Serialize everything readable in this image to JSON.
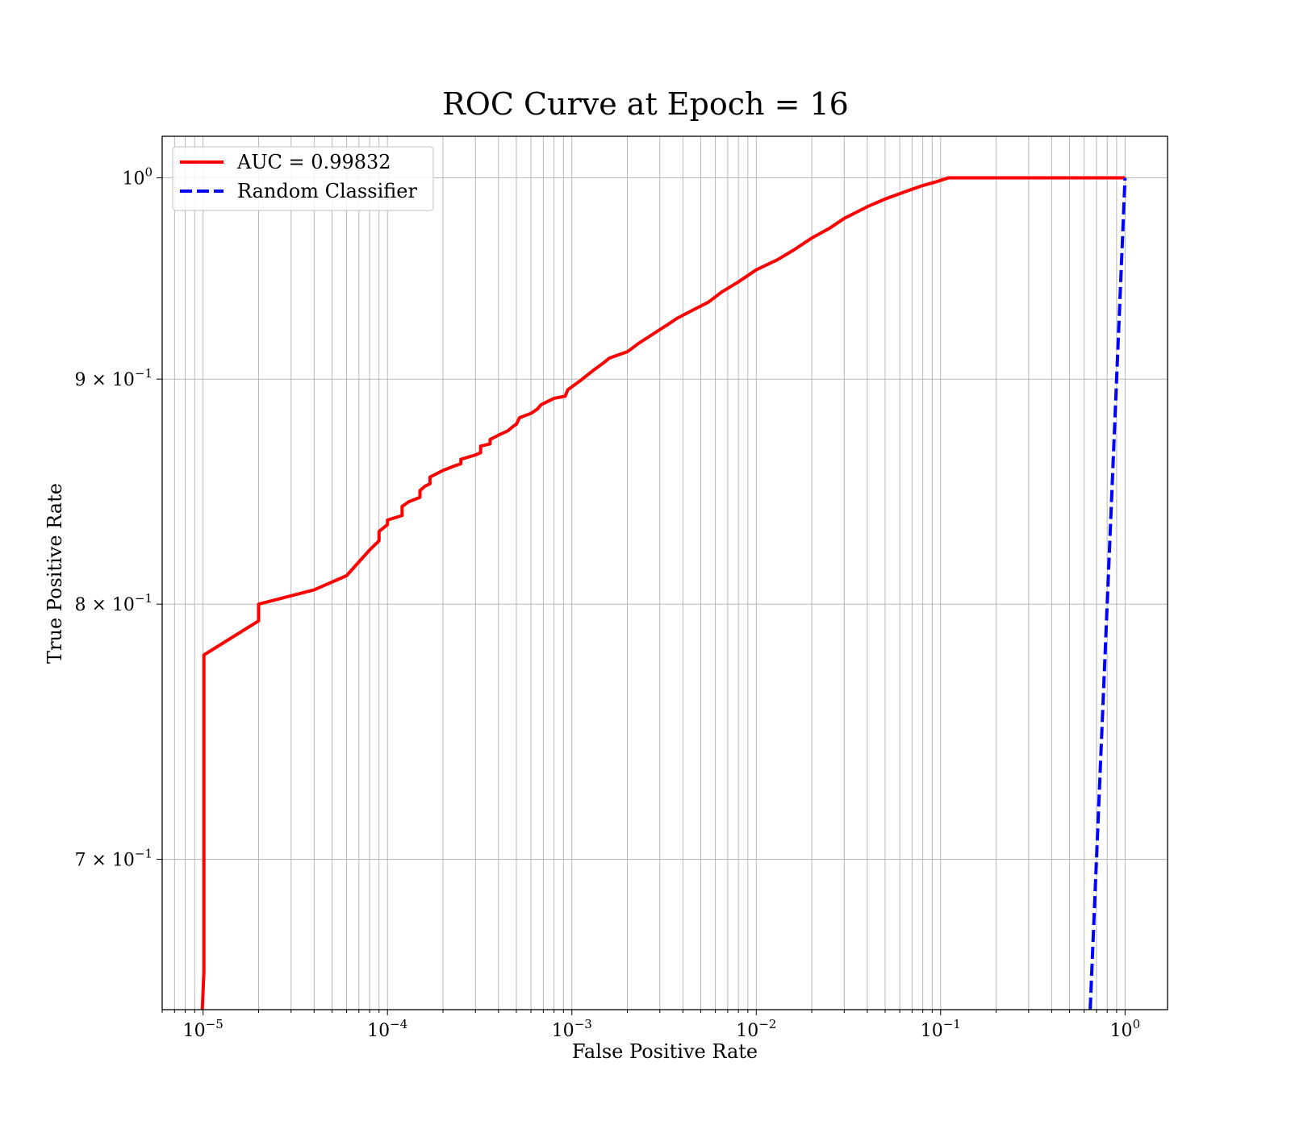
{
  "chart_data": {
    "type": "line",
    "title": "ROC Curve at Epoch = 16",
    "xlabel": "False Positive Rate",
    "ylabel": "True Positive Rate",
    "xscale": "log",
    "yscale": "log",
    "xlim": [
      6e-06,
      1.7
    ],
    "ylim": [
      0.647,
      1.022
    ],
    "grid": "both",
    "legend_position": "top-left",
    "x_ticks": [
      {
        "value": 1e-05,
        "mantissa": "",
        "base": "10",
        "exp": "−5"
      },
      {
        "value": 0.0001,
        "mantissa": "",
        "base": "10",
        "exp": "−4"
      },
      {
        "value": 0.001,
        "mantissa": "",
        "base": "10",
        "exp": "−3"
      },
      {
        "value": 0.01,
        "mantissa": "",
        "base": "10",
        "exp": "−2"
      },
      {
        "value": 0.1,
        "mantissa": "",
        "base": "10",
        "exp": "−1"
      },
      {
        "value": 1,
        "mantissa": "",
        "base": "10",
        "exp": "0"
      }
    ],
    "y_ticks": [
      {
        "value": 1.0,
        "mantissa": "",
        "base": "10",
        "exp": "0"
      },
      {
        "value": 0.9,
        "mantissa": "9 × ",
        "base": "10",
        "exp": "−1"
      },
      {
        "value": 0.8,
        "mantissa": "8 × ",
        "base": "10",
        "exp": "−1"
      },
      {
        "value": 0.7,
        "mantissa": "7 × ",
        "base": "10",
        "exp": "−1"
      }
    ],
    "series": [
      {
        "name": "AUC = 0.99832",
        "color": "#ff0000",
        "style": "solid",
        "x": [
          9.9e-06,
          1.01e-05,
          1.01e-05,
          2e-05,
          2e-05,
          4e-05,
          6e-05,
          8e-05,
          9e-05,
          9e-05,
          0.0001,
          0.0001,
          0.00012,
          0.00012,
          0.00013,
          0.00015,
          0.00015,
          0.00016,
          0.00017,
          0.00017,
          0.0002,
          0.00023,
          0.00025,
          0.00025,
          0.0003,
          0.00032,
          0.00032,
          0.00036,
          0.00036,
          0.0004,
          0.00045,
          0.00048,
          0.0005,
          0.00052,
          0.0006,
          0.00065,
          0.00068,
          0.0008,
          0.00092,
          0.00095,
          0.0011,
          0.0013,
          0.0015,
          0.0016,
          0.002,
          0.0023,
          0.0027,
          0.0033,
          0.0037,
          0.0045,
          0.0055,
          0.0065,
          0.008,
          0.01,
          0.013,
          0.016,
          0.02,
          0.025,
          0.03,
          0.04,
          0.05,
          0.065,
          0.08,
          0.095,
          0.11,
          0.2,
          0.4,
          0.7,
          1.0
        ],
        "y": [
          0.647,
          0.66,
          0.779,
          0.793,
          0.8,
          0.806,
          0.812,
          0.823,
          0.827,
          0.831,
          0.834,
          0.836,
          0.838,
          0.842,
          0.844,
          0.846,
          0.849,
          0.851,
          0.852,
          0.855,
          0.858,
          0.86,
          0.861,
          0.863,
          0.865,
          0.866,
          0.869,
          0.87,
          0.872,
          0.874,
          0.876,
          0.878,
          0.879,
          0.882,
          0.884,
          0.886,
          0.888,
          0.891,
          0.892,
          0.895,
          0.899,
          0.904,
          0.908,
          0.91,
          0.913,
          0.917,
          0.921,
          0.926,
          0.929,
          0.933,
          0.937,
          0.942,
          0.947,
          0.953,
          0.958,
          0.963,
          0.969,
          0.974,
          0.979,
          0.985,
          0.989,
          0.993,
          0.996,
          0.998,
          1.0,
          1.0,
          1.0,
          1.0,
          1.0
        ]
      },
      {
        "name": "Random Classifier",
        "color": "#0000ff",
        "style": "dashed",
        "x": [
          0.647,
          0.7,
          0.8,
          0.9,
          1.0
        ],
        "y": [
          0.647,
          0.7,
          0.8,
          0.9,
          1.0
        ]
      }
    ]
  }
}
